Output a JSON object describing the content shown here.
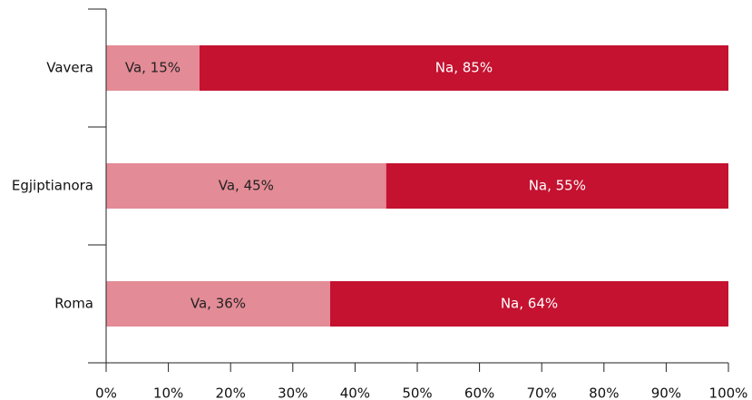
{
  "chart_data": {
    "type": "stacked-barh",
    "categories": [
      "Vavera",
      "Egjiptianora",
      "Roma"
    ],
    "series": [
      {
        "name": "Va",
        "color": "#e38b96",
        "values": [
          15,
          45,
          36
        ],
        "value_labels": [
          "Va, 15%",
          "Va, 45%",
          "Va, 36%"
        ]
      },
      {
        "name": "Na",
        "color": "#c41230",
        "values": [
          85,
          55,
          64
        ],
        "value_labels": [
          "Na, 85%",
          "Na, 55%",
          "Na, 64%"
        ]
      }
    ],
    "xlim": [
      0,
      100
    ],
    "xticks": [
      {
        "value": 0,
        "label": "0%"
      },
      {
        "value": 10,
        "label": "10%"
      },
      {
        "value": 20,
        "label": "20%"
      },
      {
        "value": 30,
        "label": "30%"
      },
      {
        "value": 40,
        "label": "40%"
      },
      {
        "value": 50,
        "label": "50%"
      },
      {
        "value": 60,
        "label": "60%"
      },
      {
        "value": 70,
        "label": "70%"
      },
      {
        "value": 80,
        "label": "80%"
      },
      {
        "value": 90,
        "label": "90%"
      },
      {
        "value": 100,
        "label": "100%"
      }
    ],
    "grid": false
  }
}
